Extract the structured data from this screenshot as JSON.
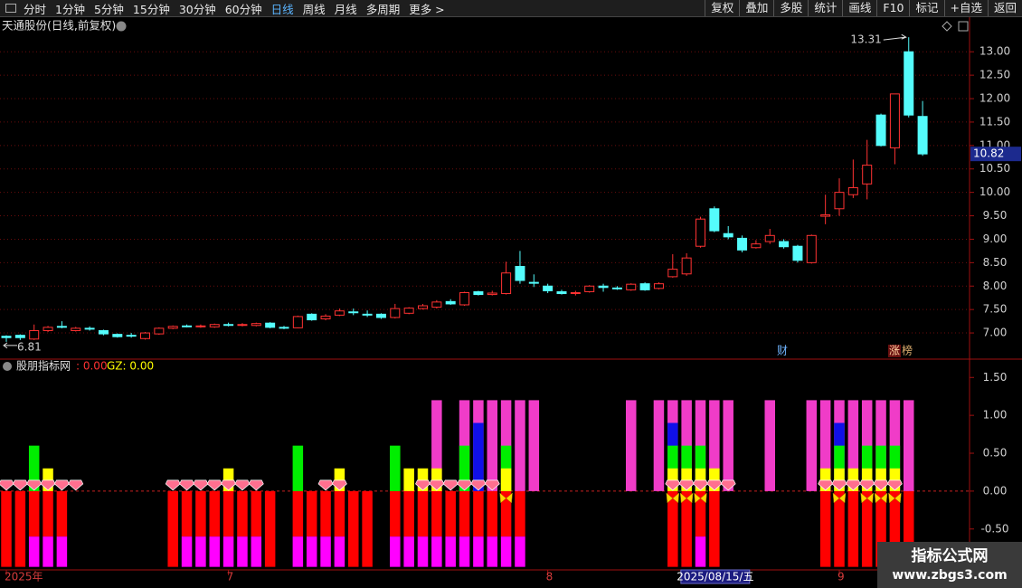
{
  "toolbar": {
    "left": [
      "分时",
      "1分钟",
      "5分钟",
      "15分钟",
      "30分钟",
      "60分钟",
      "日线",
      "周线",
      "月线",
      "多周期",
      "更多 >"
    ],
    "right": [
      "复权",
      "叠加",
      "多股",
      "统计",
      "画线",
      "F10",
      "标记",
      "+自选",
      "返回"
    ]
  },
  "annotations": [
    "财",
    "涨",
    "榜"
  ],
  "watermark": {
    "title": "指标公式网",
    "url": "www.zbgs3.com"
  },
  "chart_data": [
    {
      "type": "candlestick",
      "title": "天通股份(日线,前复权)",
      "up_color": "#ff3232",
      "down_color": "#54fcfc",
      "grid": true,
      "ylim": [
        6.48,
        13.68
      ],
      "yticks": [
        {
          "value": 7,
          "label": "7.00"
        },
        {
          "value": 7.5,
          "label": "7.50"
        },
        {
          "value": 8,
          "label": "8.00"
        },
        {
          "value": 8.5,
          "label": "8.50"
        },
        {
          "value": 9,
          "label": "9.00"
        },
        {
          "value": 9.5,
          "label": "9.50"
        },
        {
          "value": 10,
          "label": "10.00"
        },
        {
          "value": 10.5,
          "label": "10.50"
        },
        {
          "value": 11,
          "label": "11.00"
        },
        {
          "value": 11.5,
          "label": "11.50"
        },
        {
          "value": 12,
          "label": "12.00"
        },
        {
          "value": 12.5,
          "label": "12.50"
        },
        {
          "value": 13,
          "label": "13.00"
        }
      ],
      "open": [
        6.93,
        6.95,
        6.87,
        7.05,
        7.14,
        7.05,
        7.1,
        7.05,
        6.97,
        6.95,
        6.88,
        6.98,
        7.1,
        7.15,
        7.14,
        7.13,
        7.18,
        7.17,
        7.16,
        7.21,
        7.12,
        7.11,
        7.4,
        7.3,
        7.38,
        7.45,
        7.4,
        7.4,
        7.33,
        7.42,
        7.52,
        7.55,
        7.67,
        7.6,
        7.88,
        7.82,
        7.84,
        8.42,
        8.08,
        8.0,
        7.88,
        7.85,
        7.88,
        8.0,
        7.96,
        7.92,
        8.05,
        7.95,
        8.2,
        8.26,
        8.85,
        9.65,
        9.12,
        9.02,
        8.82,
        8.95,
        8.95,
        8.85,
        8.5,
        9.49,
        9.65,
        9.95,
        10.18,
        11.65,
        10.95,
        13.0,
        11.62
      ],
      "high": [
        6.95,
        6.97,
        7.18,
        7.15,
        7.25,
        7.13,
        7.14,
        7.07,
        6.99,
        7.0,
        7.02,
        7.12,
        7.16,
        7.18,
        7.18,
        7.2,
        7.22,
        7.21,
        7.22,
        7.23,
        7.15,
        7.37,
        7.42,
        7.4,
        7.52,
        7.52,
        7.48,
        7.42,
        7.62,
        7.55,
        7.62,
        7.7,
        7.72,
        7.88,
        7.9,
        7.9,
        8.52,
        8.75,
        8.25,
        8.05,
        7.92,
        7.9,
        8.02,
        8.05,
        8.0,
        8.06,
        8.08,
        8.08,
        8.68,
        8.7,
        9.48,
        9.7,
        9.28,
        9.08,
        8.98,
        9.22,
        9.0,
        8.88,
        9.1,
        9.95,
        10.3,
        10.7,
        11.12,
        11.68,
        12.1,
        13.31,
        11.95
      ],
      "low": [
        6.81,
        6.85,
        6.85,
        7.02,
        7.1,
        7.03,
        7.05,
        6.95,
        6.9,
        6.9,
        6.86,
        6.96,
        7.08,
        7.12,
        7.11,
        7.11,
        7.14,
        7.14,
        7.14,
        7.1,
        7.08,
        7.1,
        7.26,
        7.27,
        7.36,
        7.38,
        7.34,
        7.3,
        7.31,
        7.4,
        7.5,
        7.52,
        7.6,
        7.58,
        7.8,
        7.8,
        7.82,
        8.05,
        7.98,
        7.85,
        7.82,
        7.8,
        7.86,
        7.88,
        7.92,
        7.9,
        7.9,
        7.93,
        8.18,
        8.22,
        8.82,
        9.15,
        9.0,
        8.72,
        8.8,
        8.9,
        8.8,
        8.5,
        8.48,
        9.32,
        9.5,
        9.88,
        9.85,
        10.98,
        10.6,
        11.6,
        10.78
      ],
      "close": [
        6.9,
        6.9,
        7.05,
        7.12,
        7.13,
        7.1,
        7.09,
        6.98,
        6.92,
        6.94,
        7.0,
        7.1,
        7.14,
        7.14,
        7.15,
        7.18,
        7.17,
        7.18,
        7.2,
        7.12,
        7.11,
        7.35,
        7.28,
        7.36,
        7.47,
        7.44,
        7.39,
        7.33,
        7.52,
        7.53,
        7.58,
        7.66,
        7.62,
        7.86,
        7.82,
        7.85,
        8.28,
        8.12,
        8.06,
        7.9,
        7.84,
        7.86,
        8.0,
        7.97,
        7.95,
        8.04,
        7.92,
        8.05,
        8.36,
        8.6,
        9.43,
        9.18,
        9.05,
        8.77,
        8.9,
        9.08,
        8.84,
        8.55,
        9.08,
        9.52,
        10.0,
        10.1,
        10.58,
        11.0,
        12.1,
        11.65,
        10.82
      ]
    },
    {
      "type": "bar",
      "title": "股朋指标网",
      "legend": [
        {
          "text": ": 0.00",
          "color": "#ff3232"
        },
        {
          "text": "GZ: 0.00",
          "color": "#ffff00"
        }
      ],
      "zero_line": true,
      "ylim": [
        -1.04,
        1.73
      ],
      "yticks": [
        {
          "value": 1.5,
          "label": "1.50"
        },
        {
          "value": 1,
          "label": "1.00"
        },
        {
          "value": 0.5,
          "label": "0.50"
        },
        {
          "value": 0,
          "label": "0.00"
        },
        {
          "value": -0.5,
          "label": "-0.50"
        }
      ],
      "categories": [
        "2025年",
        null,
        null,
        null,
        null,
        null,
        null,
        null,
        null,
        null,
        null,
        null,
        null,
        null,
        null,
        null,
        "7",
        null,
        null,
        null,
        null,
        null,
        null,
        null,
        null,
        null,
        null,
        null,
        null,
        null,
        null,
        null,
        null,
        null,
        null,
        null,
        null,
        null,
        null,
        "8",
        null,
        null,
        null,
        null,
        null,
        null,
        null,
        null,
        null,
        null,
        null,
        "2025/08/15/五",
        null,
        null,
        null,
        null,
        null,
        null,
        null,
        null,
        "9",
        null,
        null,
        null,
        null,
        null,
        null
      ],
      "series": [
        {
          "shape": "bar",
          "color": "#ff0000",
          "values": [
            -1,
            -1,
            -0.6,
            -0.6,
            -0.6,
            null,
            null,
            null,
            null,
            null,
            null,
            null,
            -1,
            -0.6,
            -0.6,
            -0.6,
            -0.6,
            -0.6,
            -0.6,
            -1,
            null,
            -0.6,
            -0.6,
            -0.6,
            -0.6,
            -1,
            -1,
            null,
            -0.6,
            -0.6,
            -0.6,
            -0.6,
            -0.6,
            -0.6,
            -0.6,
            -0.6,
            -0.6,
            -0.6,
            null,
            null,
            null,
            null,
            null,
            null,
            null,
            null,
            null,
            null,
            -1,
            -1,
            -0.6,
            -1,
            null,
            null,
            null,
            null,
            null,
            null,
            null,
            -1,
            -1,
            -1,
            -1,
            -1,
            -1,
            -1,
            null
          ]
        },
        {
          "shape": "bar",
          "stacked": true,
          "color": "#ff00ff",
          "values": [
            null,
            null,
            -0.4,
            -0.4,
            -0.4,
            null,
            null,
            null,
            null,
            null,
            null,
            null,
            null,
            -0.4,
            -0.4,
            -0.4,
            -0.4,
            -0.4,
            -0.4,
            null,
            null,
            -0.4,
            -0.4,
            -0.4,
            -0.4,
            null,
            null,
            null,
            -0.4,
            -0.4,
            -0.4,
            -0.4,
            -0.4,
            -0.4,
            -0.4,
            -0.4,
            -0.4,
            -0.4,
            null,
            null,
            null,
            null,
            null,
            null,
            null,
            null,
            null,
            null,
            null,
            null,
            -0.4,
            null,
            null,
            null,
            null,
            null,
            null,
            null,
            null,
            null,
            null,
            null,
            null,
            null,
            null,
            null,
            null
          ]
        },
        {
          "shape": "bar",
          "color": "#f03cc8",
          "values": [
            null,
            null,
            null,
            null,
            null,
            null,
            null,
            null,
            null,
            null,
            null,
            null,
            null,
            null,
            null,
            null,
            null,
            null,
            null,
            null,
            null,
            null,
            null,
            null,
            null,
            null,
            null,
            null,
            null,
            null,
            null,
            1.2,
            null,
            1.2,
            1.2,
            1.2,
            1.2,
            1.2,
            1.2,
            null,
            null,
            null,
            null,
            null,
            null,
            1.2,
            null,
            1.2,
            1.2,
            1.2,
            1.2,
            1.2,
            1.2,
            null,
            null,
            1.2,
            null,
            null,
            1.2,
            1.2,
            1.2,
            1.2,
            1.2,
            1.2,
            1.2,
            1.2,
            null
          ]
        },
        {
          "shape": "bar",
          "color": "#1010e8",
          "values": [
            null,
            null,
            null,
            null,
            null,
            null,
            null,
            null,
            null,
            null,
            null,
            null,
            null,
            null,
            null,
            null,
            null,
            null,
            null,
            null,
            null,
            null,
            null,
            null,
            null,
            null,
            null,
            null,
            null,
            null,
            null,
            null,
            null,
            null,
            0.9,
            null,
            null,
            null,
            null,
            null,
            null,
            null,
            null,
            null,
            null,
            null,
            null,
            null,
            0.9,
            null,
            null,
            null,
            null,
            null,
            null,
            null,
            null,
            null,
            null,
            null,
            0.9,
            null,
            null,
            null,
            null,
            null,
            null
          ]
        },
        {
          "shape": "bar",
          "color": "#00ee00",
          "values": [
            null,
            null,
            0.6,
            null,
            null,
            null,
            null,
            null,
            null,
            null,
            null,
            null,
            null,
            null,
            null,
            null,
            null,
            null,
            null,
            null,
            null,
            0.6,
            null,
            null,
            null,
            null,
            null,
            null,
            0.6,
            null,
            null,
            null,
            null,
            0.6,
            null,
            null,
            0.6,
            null,
            null,
            null,
            null,
            null,
            null,
            null,
            null,
            null,
            null,
            null,
            0.6,
            0.6,
            0.6,
            null,
            null,
            null,
            null,
            null,
            null,
            null,
            null,
            null,
            0.6,
            null,
            0.6,
            0.6,
            0.6,
            null,
            null
          ]
        },
        {
          "shape": "bar",
          "color": "#ffff00",
          "values": [
            null,
            null,
            null,
            0.3,
            null,
            null,
            null,
            null,
            null,
            null,
            null,
            null,
            null,
            null,
            null,
            null,
            0.3,
            null,
            null,
            null,
            null,
            null,
            null,
            null,
            0.3,
            null,
            null,
            null,
            null,
            0.3,
            0.3,
            0.3,
            null,
            null,
            null,
            null,
            0.3,
            null,
            null,
            null,
            null,
            null,
            null,
            null,
            null,
            null,
            null,
            null,
            0.3,
            0.3,
            0.3,
            0.3,
            null,
            null,
            null,
            null,
            null,
            null,
            null,
            0.3,
            0.3,
            0.3,
            0.3,
            0.3,
            0.3,
            null,
            null
          ]
        },
        {
          "shape": "diamond",
          "color": "#ff6f8f",
          "values": [
            0,
            0,
            0,
            0,
            0,
            0,
            null,
            null,
            null,
            null,
            null,
            null,
            0,
            0,
            0,
            0,
            0,
            0,
            0,
            null,
            null,
            null,
            null,
            0,
            0,
            null,
            null,
            null,
            null,
            null,
            0,
            0,
            0,
            0,
            0,
            0,
            null,
            null,
            null,
            null,
            null,
            null,
            null,
            null,
            null,
            null,
            null,
            null,
            0,
            0,
            0,
            0,
            0,
            null,
            null,
            null,
            null,
            null,
            null,
            0,
            0,
            0,
            0,
            0,
            0,
            null,
            null
          ]
        },
        {
          "shape": "butterfly",
          "color": "#ffd700",
          "values": [
            null,
            null,
            null,
            null,
            null,
            null,
            null,
            null,
            null,
            null,
            null,
            null,
            null,
            null,
            null,
            null,
            null,
            null,
            null,
            null,
            null,
            null,
            null,
            null,
            null,
            null,
            null,
            null,
            null,
            null,
            null,
            null,
            null,
            null,
            null,
            null,
            0,
            null,
            null,
            null,
            null,
            null,
            null,
            null,
            null,
            null,
            null,
            null,
            0,
            0,
            0,
            null,
            null,
            null,
            null,
            null,
            null,
            null,
            null,
            null,
            0,
            null,
            0,
            0,
            0,
            null,
            null
          ]
        }
      ]
    }
  ]
}
